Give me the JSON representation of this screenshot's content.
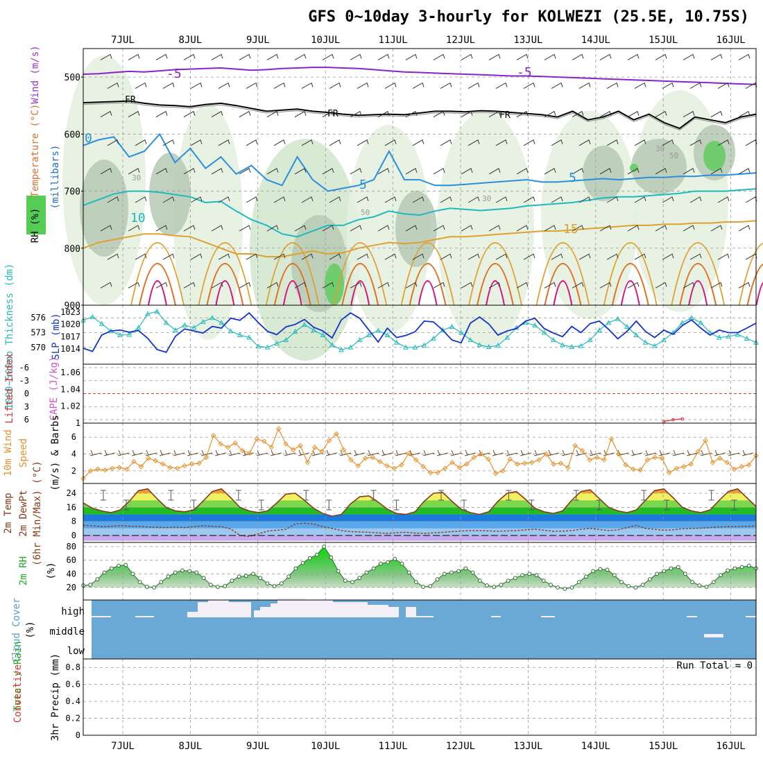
{
  "title": "GFS 0~10day 3-hourly for KOLWEZI (25.5E, 10.75S)",
  "colors": {
    "rh": "#55cc55",
    "rh_label": "#22aa22",
    "temp_label": "#e07030",
    "wind_label": "#9933cc",
    "millibars_label": "#1a6ccc",
    "thickness": "#22bbbb",
    "slp": "#1133cc",
    "lifted": "#dd3333",
    "cape": "#cc55cc",
    "wind10m": "#e8902a",
    "barb": "#6b4a2a",
    "temp": "#8b3a1a",
    "dewpt": "#8b3a1a",
    "cloud": "#6aa9d6",
    "cloud_gap": "#f4eef6",
    "iso_neg5": "#8a22c8",
    "iso_fr": "#000000",
    "iso_5": "#2a8ee0",
    "iso_10": "#20b8c0",
    "iso_15": "#e0a030",
    "iso_20": "#e07020",
    "iso_25": "#d8107a"
  },
  "chart_data": [
    {
      "panel": "upper-air",
      "type": "contour",
      "ylabel_parts": [
        "Wind (m/s)",
        "Temperature (°C)",
        "RH (%)"
      ],
      "yunit": "(millibars)",
      "y_ticks": [
        "500",
        "600",
        "700",
        "800",
        "900"
      ],
      "ylim": [
        900,
        450
      ],
      "x_ticks": [
        "7JUL",
        "8JUL",
        "9JUL",
        "10JUL",
        "11JUL",
        "12JUL",
        "13JUL",
        "14JUL",
        "15JUL",
        "16JUL"
      ],
      "rh_levels": [
        30,
        50
      ],
      "isotherm_labels": [
        "-5",
        "-5",
        "FR",
        "FR",
        "FR",
        "0",
        "5",
        "5",
        "10",
        "15"
      ],
      "rh_labels": [
        "30",
        "30",
        "50",
        "50",
        "30"
      ],
      "isotherms": [
        {
          "label": "-5",
          "values": [
            495,
            494,
            492,
            490,
            491,
            489,
            487,
            486,
            485,
            484,
            486,
            488,
            487,
            485,
            484,
            483,
            483,
            484,
            485,
            487,
            489,
            491,
            492,
            493,
            494,
            495,
            496,
            497,
            498,
            498,
            499,
            500,
            501,
            502,
            503,
            504,
            505,
            506,
            507,
            508,
            509,
            510,
            511,
            512,
            513
          ]
        },
        {
          "label": "FR",
          "values": [
            545,
            544,
            543,
            542,
            546,
            549,
            550,
            552,
            548,
            546,
            550,
            555,
            560,
            558,
            556,
            560,
            562,
            565,
            567,
            566,
            565,
            566,
            563,
            560,
            560,
            561,
            559,
            560,
            562,
            564,
            566,
            570,
            560,
            575,
            570,
            560,
            575,
            565,
            580,
            590,
            570,
            575,
            580,
            570,
            565
          ]
        },
        {
          "label": "5",
          "values": [
            620,
            610,
            605,
            640,
            630,
            600,
            650,
            625,
            660,
            640,
            670,
            655,
            680,
            690,
            640,
            680,
            700,
            695,
            690,
            680,
            630,
            680,
            680,
            690,
            690,
            688,
            686,
            684,
            682,
            680,
            684,
            684,
            682,
            680,
            678,
            680,
            678,
            676,
            676,
            674,
            674,
            672,
            672,
            670,
            668
          ]
        },
        {
          "label": "10",
          "values": [
            725,
            715,
            705,
            700,
            700,
            702,
            706,
            710,
            720,
            718,
            735,
            750,
            760,
            775,
            780,
            770,
            760,
            760,
            750,
            745,
            735,
            740,
            742,
            735,
            730,
            732,
            734,
            732,
            730,
            726,
            724,
            722,
            720,
            716,
            712,
            710,
            710,
            708,
            706,
            704,
            700,
            700,
            700,
            698,
            696
          ]
        },
        {
          "label": "15",
          "values": [
            800,
            790,
            785,
            780,
            775,
            775,
            778,
            780,
            790,
            800,
            810,
            810,
            815,
            815,
            810,
            805,
            810,
            808,
            800,
            795,
            790,
            792,
            790,
            785,
            780,
            780,
            778,
            776,
            774,
            772,
            770,
            770,
            768,
            766,
            764,
            762,
            760,
            760,
            758,
            758,
            756,
            756,
            754,
            754,
            752
          ]
        }
      ]
    },
    {
      "panel": "thickness-slp",
      "type": "line",
      "ylabel_left": "1000~500mb Thickness (dm)",
      "ylabel_right": "SLP (mb)",
      "y_ticks_left": [
        "576",
        "573",
        "570"
      ],
      "y_ticks_right": [
        "1023",
        "1020",
        "1017",
        "1014"
      ],
      "series": [
        {
          "name": "1000~500mb Thickness (dm)",
          "values": [
            575.5,
            576.2,
            574.8,
            573.3,
            572.5,
            572.6,
            574.0,
            576.8,
            577.3,
            575.0,
            573.5,
            574.5,
            574.0,
            575.2,
            576.0,
            575.0,
            573.3,
            572.5,
            572.0,
            570.2,
            570.0,
            570.8,
            571.5,
            573.2,
            574.6,
            573.5,
            572.5,
            570.5,
            569.5,
            570.0,
            571.5,
            572.5,
            573.4,
            572.5,
            571.0,
            570.0,
            570.0,
            570.4,
            571.8,
            573.5,
            574.2,
            573.0,
            571.5,
            570.5,
            570.1,
            570.4,
            572.0,
            574.0,
            575.0,
            574.5,
            573.0,
            571.5,
            570.5,
            570.1,
            570.3,
            571.5,
            573.5,
            575.0,
            575.8,
            574.2,
            572.5,
            571.0,
            570.3,
            571.5,
            573.0,
            575.0,
            576.0,
            575.0,
            573.0,
            572.0,
            572.2,
            572.6,
            571.8,
            571.0
          ]
        },
        {
          "name": "SLP (mb)",
          "values": [
            1014.2,
            1013.4,
            1017.4,
            1018.4,
            1018.6,
            1018.1,
            1018.5,
            1016.6,
            1013.9,
            1013.2,
            1017.1,
            1018.9,
            1018.4,
            1017.9,
            1019.5,
            1019.1,
            1021.5,
            1021.0,
            1022.8,
            1020.4,
            1018.3,
            1017.5,
            1019.4,
            1020.0,
            1021.2,
            1019.3,
            1018.4,
            1016.7,
            1021.1,
            1022.8,
            1021.5,
            1018.6,
            1015.7,
            1019.1,
            1016.8,
            1017.3,
            1018.2,
            1020.8,
            1020.6,
            1018.6,
            1016.2,
            1015.5,
            1020.3,
            1021.8,
            1020.1,
            1017.4,
            1018.4,
            1019.0,
            1020.8,
            1021.5,
            1019.0,
            1017.9,
            1017.0,
            1019.5,
            1018.0,
            1020.2,
            1020.8,
            1018.8,
            1016.5,
            1018.3,
            1020.8,
            1018.3,
            1016.8,
            1018.6,
            1017.6,
            1019.7,
            1021.1,
            1019.1,
            1017.4,
            1018.6,
            1018.0,
            1018.0,
            1019.1,
            1020.3
          ]
        }
      ]
    },
    {
      "panel": "stability",
      "type": "line",
      "ylabel_left": "Lifted Index",
      "ylabel_right": "CAPE (J/kg)",
      "y_ticks_left": [
        "-6",
        "-3",
        "0",
        "3",
        "6"
      ],
      "y_ticks_right": [
        "1.06",
        "1.04",
        "1.02",
        "1"
      ],
      "series": [
        {
          "name": "CAPE (J/kg)",
          "x_index": [
            63,
            64,
            65
          ],
          "values": [
            1.002,
            1.004,
            1.005
          ]
        }
      ]
    },
    {
      "panel": "wind-10m",
      "type": "line",
      "ylabel": "10m Wind Speed (m/s) & Barbs",
      "y_ticks": [
        "6",
        "4",
        "2"
      ],
      "series": [
        {
          "name": "10m Wind Speed",
          "values": [
            1.1,
            2.0,
            2.2,
            2.1,
            2.3,
            2.4,
            2.2,
            3.1,
            2.5,
            3.5,
            3.2,
            2.8,
            2.4,
            2.3,
            2.6,
            2.8,
            2.9,
            3.6,
            6.2,
            5.2,
            4.8,
            5.3,
            4.4,
            4.1,
            5.8,
            5.5,
            4.8,
            7.0,
            5.2,
            4.5,
            5.0,
            3.0,
            4.8,
            4.3,
            5.6,
            6.4,
            4.5,
            3.3,
            2.6,
            3.5,
            3.6,
            3.1,
            2.6,
            2.3,
            2.7,
            4.1,
            3.3,
            2.5,
            1.8,
            1.8,
            2.3,
            3.0,
            2.4,
            2.8,
            3.6,
            4.0,
            3.4,
            1.7,
            2.0,
            3.4,
            2.8,
            2.9,
            3.0,
            3.3,
            4.0,
            2.8,
            2.9,
            2.4,
            5.0,
            4.4,
            3.3,
            3.6,
            3.3,
            5.8,
            4.0,
            2.7,
            2.2,
            2.1,
            3.3,
            3.6,
            3.5,
            1.8,
            2.3,
            2.5,
            2.8,
            4.3,
            5.6,
            3.0,
            3.5,
            3.0,
            2.2,
            2.5,
            2.7,
            3.8
          ]
        }
      ]
    },
    {
      "panel": "temperature",
      "type": "area",
      "ylabel_parts": [
        "2m Temp",
        "2m DewPt",
        "(6hr Min/Max) (°C)"
      ],
      "y_ticks": [
        "24",
        "16",
        "8",
        "0"
      ],
      "series": [
        {
          "name": "2m Temp",
          "values": [
            18.5,
            15.5,
            14.0,
            13.0,
            14.5,
            19.5,
            25.5,
            26.5,
            21.0,
            16.0,
            14.0,
            13.5,
            14.5,
            19.5,
            25.0,
            26.5,
            21.5,
            16.0,
            14.0,
            13.0,
            14.0,
            18.5,
            23.5,
            24.0,
            20.0,
            15.5,
            12.5,
            11.0,
            12.0,
            18.0,
            22.0,
            22.5,
            19.0,
            15.0,
            12.5,
            12.0,
            13.5,
            19.5,
            24.0,
            24.5,
            19.5,
            15.0,
            13.0,
            12.0,
            13.5,
            19.5,
            24.0,
            25.0,
            20.5,
            15.5,
            13.5,
            12.5,
            14.0,
            20.0,
            25.0,
            26.0,
            21.0,
            16.0,
            14.0,
            13.0,
            14.5,
            20.0,
            25.5,
            26.5,
            21.5,
            16.0,
            14.0,
            13.0,
            14.5,
            20.0,
            25.0,
            26.5,
            21.5,
            16.5
          ]
        },
        {
          "name": "2m DewPt",
          "values": [
            5.8,
            5.5,
            5.0,
            5.2,
            5.6,
            5.3,
            5.2,
            4.8,
            4.6,
            4.5,
            4.7,
            4.5,
            5.0,
            5.5,
            5.2,
            5.0,
            3.8,
            0.0,
            -0.5,
            1.0,
            2.5,
            3.0,
            3.5,
            6.5,
            7.0,
            6.5,
            5.0,
            4.0,
            2.8,
            2.2,
            2.0,
            1.8,
            1.5,
            1.2,
            1.6,
            1.8,
            1.4,
            1.2,
            1.5,
            1.8,
            2.2,
            2.5,
            2.8,
            2.8,
            2.6,
            2.4,
            2.6,
            2.8,
            3.2,
            3.6,
            3.0,
            2.4,
            2.5,
            2.8,
            3.5,
            4.0,
            3.4,
            2.8,
            3.2,
            4.5,
            5.8,
            4.0,
            3.5,
            3.0,
            3.2,
            3.8,
            4.0,
            4.2,
            4.5,
            4.8,
            5.0,
            5.0,
            5.2,
            5.5
          ]
        }
      ]
    },
    {
      "panel": "humidity",
      "type": "area",
      "ylabel": "2m RH (%)",
      "y_ticks": [
        "80",
        "60",
        "40",
        "20"
      ],
      "series": [
        {
          "name": "2m RH",
          "values": [
            23,
            24,
            32,
            42,
            48,
            52,
            53,
            40,
            28,
            21,
            20,
            28,
            36,
            42,
            45,
            44,
            42,
            34,
            24,
            21,
            22,
            30,
            36,
            37,
            40,
            34,
            26,
            22,
            26,
            36,
            48,
            56,
            63,
            68,
            80,
            64,
            44,
            30,
            28,
            34,
            42,
            48,
            55,
            57,
            62,
            55,
            42,
            28,
            21,
            22,
            32,
            40,
            42,
            44,
            48,
            42,
            30,
            23,
            21,
            24,
            30,
            34,
            38,
            40,
            38,
            30,
            24,
            20,
            18,
            20,
            28,
            36,
            44,
            47,
            46,
            38,
            28,
            22,
            20,
            24,
            32,
            40,
            44,
            48,
            50,
            40,
            28,
            23,
            21,
            28,
            38,
            45,
            48,
            50,
            52,
            48
          ]
        }
      ]
    },
    {
      "panel": "cloud-cover",
      "type": "heatmap",
      "ylabel": "Cloud Cover (%)",
      "y_ticks": [
        "high",
        "middle",
        "low"
      ]
    },
    {
      "panel": "precip",
      "type": "bar",
      "ylabel_parts": [
        "Total / Rain",
        "Convective",
        "3hr Precip (mm)"
      ],
      "y_ticks": [
        "0.8",
        "0.6",
        "0.4",
        "0.2",
        "0"
      ],
      "run_total": "Run Total = 0",
      "values": []
    }
  ]
}
